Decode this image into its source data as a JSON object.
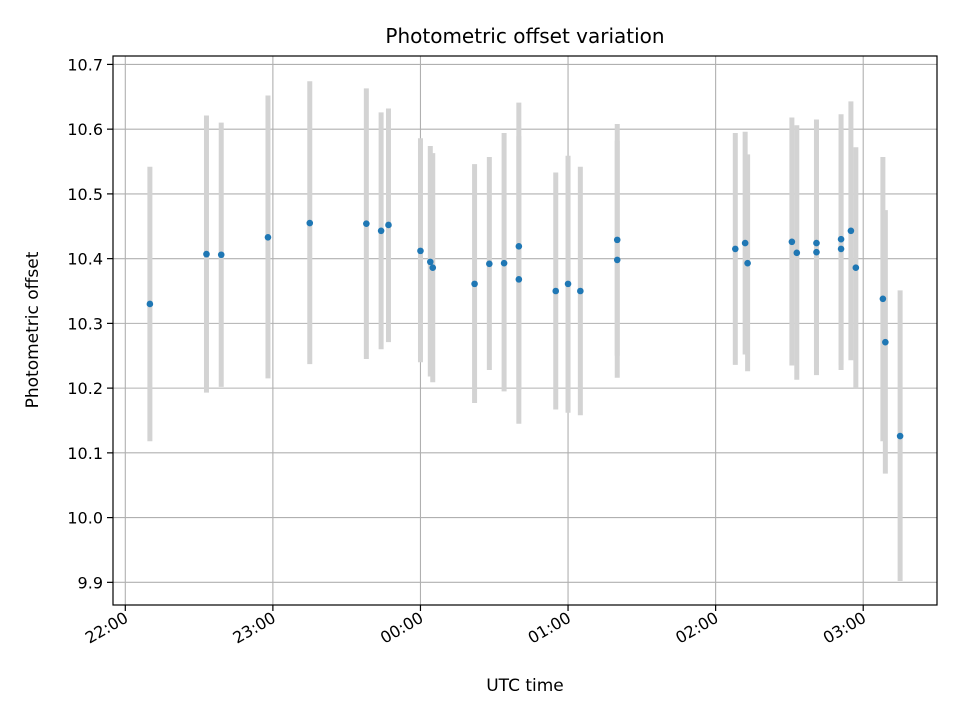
{
  "chart_data": {
    "type": "scatter",
    "title": "Photometric offset variation",
    "xlabel": "UTC time",
    "ylabel": "Photometric offset",
    "x_tick_labels": [
      "22:00",
      "23:00",
      "00:00",
      "01:00",
      "02:00",
      "03:00"
    ],
    "y_tick_labels": [
      "9.9",
      "10.0",
      "10.1",
      "10.2",
      "10.3",
      "10.4",
      "10.5",
      "10.6",
      "10.7"
    ],
    "x_ticks": [
      "22:00",
      "23:00",
      "00:00",
      "01:00",
      "02:00",
      "03:00"
    ],
    "y_ticks": [
      9.9,
      10.0,
      10.1,
      10.2,
      10.3,
      10.4,
      10.5,
      10.6,
      10.7
    ],
    "xlim": [
      "21:55",
      "03:30"
    ],
    "ylim": [
      9.865,
      10.713
    ],
    "grid": true,
    "colors": {
      "point": "#1f77b4",
      "errorbar": "#d3d3d3",
      "grid": "#b0b0b0"
    },
    "points": [
      {
        "t": "22:10",
        "y": 10.33,
        "lo": 10.118,
        "hi": 10.542
      },
      {
        "t": "22:33",
        "y": 10.407,
        "lo": 10.193,
        "hi": 10.621
      },
      {
        "t": "22:39",
        "y": 10.406,
        "lo": 10.202,
        "hi": 10.61
      },
      {
        "t": "22:58",
        "y": 10.433,
        "lo": 10.215,
        "hi": 10.652
      },
      {
        "t": "23:15",
        "y": 10.455,
        "lo": 10.237,
        "hi": 10.674
      },
      {
        "t": "23:38",
        "y": 10.454,
        "lo": 10.245,
        "hi": 10.663
      },
      {
        "t": "23:44",
        "y": 10.443,
        "lo": 10.26,
        "hi": 10.626
      },
      {
        "t": "23:47",
        "y": 10.452,
        "lo": 10.271,
        "hi": 10.632
      },
      {
        "t": "00:00",
        "y": 10.412,
        "lo": 10.24,
        "hi": 10.586
      },
      {
        "t": "00:04",
        "y": 10.395,
        "lo": 10.218,
        "hi": 10.574
      },
      {
        "t": "00:05",
        "y": 10.386,
        "lo": 10.209,
        "hi": 10.563
      },
      {
        "t": "00:22",
        "y": 10.361,
        "lo": 10.177,
        "hi": 10.546
      },
      {
        "t": "00:28",
        "y": 10.392,
        "lo": 10.228,
        "hi": 10.557
      },
      {
        "t": "00:34",
        "y": 10.393,
        "lo": 10.195,
        "hi": 10.594
      },
      {
        "t": "00:40",
        "y": 10.419,
        "lo": 10.197,
        "hi": 10.641
      },
      {
        "t": "00:40",
        "y": 10.368,
        "lo": 10.145,
        "hi": 10.589
      },
      {
        "t": "00:55",
        "y": 10.35,
        "lo": 10.167,
        "hi": 10.533
      },
      {
        "t": "01:00",
        "y": 10.361,
        "lo": 10.162,
        "hi": 10.559
      },
      {
        "t": "01:05",
        "y": 10.35,
        "lo": 10.158,
        "hi": 10.542
      },
      {
        "t": "01:20",
        "y": 10.429,
        "lo": 10.25,
        "hi": 10.608
      },
      {
        "t": "01:20",
        "y": 10.398,
        "lo": 10.216,
        "hi": 10.582
      },
      {
        "t": "02:08",
        "y": 10.415,
        "lo": 10.236,
        "hi": 10.594
      },
      {
        "t": "02:12",
        "y": 10.424,
        "lo": 10.252,
        "hi": 10.596
      },
      {
        "t": "02:13",
        "y": 10.393,
        "lo": 10.226,
        "hi": 10.561
      },
      {
        "t": "02:31",
        "y": 10.426,
        "lo": 10.235,
        "hi": 10.618
      },
      {
        "t": "02:33",
        "y": 10.409,
        "lo": 10.213,
        "hi": 10.606
      },
      {
        "t": "02:41",
        "y": 10.424,
        "lo": 10.232,
        "hi": 10.615
      },
      {
        "t": "02:41",
        "y": 10.41,
        "lo": 10.22,
        "hi": 10.6
      },
      {
        "t": "02:51",
        "y": 10.43,
        "lo": 10.236,
        "hi": 10.623
      },
      {
        "t": "02:51",
        "y": 10.415,
        "lo": 10.228,
        "hi": 10.602
      },
      {
        "t": "02:55",
        "y": 10.443,
        "lo": 10.243,
        "hi": 10.643
      },
      {
        "t": "02:57",
        "y": 10.386,
        "lo": 10.2,
        "hi": 10.572
      },
      {
        "t": "03:08",
        "y": 10.338,
        "lo": 10.118,
        "hi": 10.557
      },
      {
        "t": "03:09",
        "y": 10.271,
        "lo": 10.068,
        "hi": 10.475
      },
      {
        "t": "03:15",
        "y": 10.126,
        "lo": 9.902,
        "hi": 10.351
      }
    ]
  }
}
